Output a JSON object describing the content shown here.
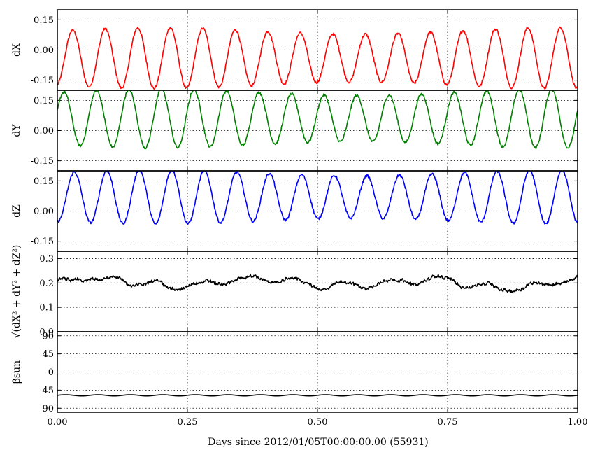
{
  "chart_data": {
    "type": "line",
    "xlabel": "Days since 2012/01/05T00:00:00.00 (55931)",
    "xlim": [
      0.0,
      1.0
    ],
    "xticks": [
      "0.00",
      "0.25",
      "0.50",
      "0.75",
      "1.00"
    ],
    "panels": [
      {
        "ylabel": "dX",
        "ylim": [
          -0.2,
          0.2
        ],
        "yticks": [
          "0.15",
          "0.00",
          "-0.15"
        ],
        "color": "#ff0000",
        "series_form": "sinusoid",
        "mean": -0.04,
        "amplitude": 0.135,
        "cycles": 16,
        "phase": -1.4
      },
      {
        "ylabel": "dY",
        "ylim": [
          -0.2,
          0.2
        ],
        "yticks": [
          "0.15",
          "0.00",
          "-0.15"
        ],
        "color": "#008000",
        "series_form": "sinusoid",
        "mean": 0.06,
        "amplitude": 0.13,
        "cycles": 16,
        "phase": 0.3
      },
      {
        "ylabel": "dZ",
        "ylim": [
          -0.2,
          0.2
        ],
        "yticks": [
          "0.15",
          "0.00",
          "-0.15"
        ],
        "color": "#0000ff",
        "series_form": "sinusoid",
        "mean": 0.07,
        "amplitude": 0.12,
        "cycles": 16,
        "phase": -1.7
      },
      {
        "ylabel": "√(dX² + dY² + dZ²)",
        "ylim": [
          0.0,
          0.33
        ],
        "yticks": [
          "0.3",
          "0.2",
          "0.1",
          "0.0"
        ],
        "color": "#000000",
        "series_form": "noise",
        "mean": 0.2,
        "amplitude": 0.025,
        "cycles": 16,
        "phase": 0.0
      },
      {
        "ylabel": "βsun",
        "ylim": [
          -100,
          100
        ],
        "yticks": [
          "90",
          "45",
          "0",
          "-45",
          "-90"
        ],
        "color": "#000000",
        "series_form": "flat",
        "mean": -58,
        "amplitude": 1.5,
        "cycles": 16,
        "phase": 0.0
      }
    ]
  }
}
